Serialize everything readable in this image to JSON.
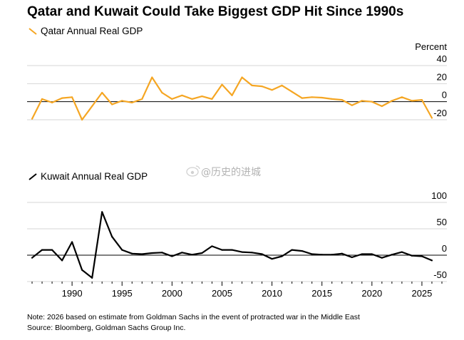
{
  "title": "Qatar and Kuwait Could Take Biggest GDP Hit Since 1990s",
  "note": "Note: 2026 based on estimate from Goldman Sachs in the event of protracted war in the Middle East",
  "source": "Source: Bloomberg, Goldman Sachs Group Inc.",
  "watermark": "@历史的进城",
  "colors": {
    "qatar": "#f5a623",
    "kuwait": "#000000",
    "grid": "#d6d6d6"
  },
  "chart_data": [
    {
      "type": "line",
      "title": "",
      "series": [
        {
          "name": "Qatar Annual Real GDP",
          "x": [
            1986,
            1987,
            1988,
            1989,
            1990,
            1991,
            1992,
            1993,
            1994,
            1995,
            1996,
            1997,
            1998,
            1999,
            2000,
            2001,
            2002,
            2003,
            2004,
            2005,
            2006,
            2007,
            2008,
            2009,
            2010,
            2011,
            2012,
            2013,
            2014,
            2015,
            2016,
            2017,
            2018,
            2019,
            2020,
            2021,
            2022,
            2023,
            2024,
            2025,
            2026
          ],
          "values": [
            -19,
            3,
            -1,
            4,
            5,
            -20,
            -5,
            10,
            -3,
            1,
            -1,
            3,
            27,
            10,
            3,
            7,
            3,
            6,
            3,
            19,
            7,
            27,
            18,
            17,
            13,
            18,
            11,
            4,
            5,
            4.5,
            3,
            2,
            -4,
            1,
            0,
            -5,
            1,
            5,
            1,
            2,
            -18
          ]
        }
      ],
      "xlim": [
        1985.5,
        2027.5
      ],
      "ylim": [
        -20,
        40
      ],
      "yticks": [
        -20,
        0,
        20,
        40
      ],
      "ylabel": "Percent",
      "grid": true,
      "legend": "top-left"
    },
    {
      "type": "line",
      "title": "",
      "series": [
        {
          "name": "Kuwait Annual Real GDP",
          "x": [
            1986,
            1987,
            1988,
            1989,
            1990,
            1991,
            1992,
            1993,
            1994,
            1995,
            1996,
            1997,
            1998,
            1999,
            2000,
            2001,
            2002,
            2003,
            2004,
            2005,
            2006,
            2007,
            2008,
            2009,
            2010,
            2011,
            2012,
            2013,
            2014,
            2015,
            2016,
            2017,
            2018,
            2019,
            2020,
            2021,
            2022,
            2023,
            2024,
            2025,
            2026
          ],
          "values": [
            -5,
            10,
            10,
            -10,
            25,
            -28,
            -43,
            82,
            35,
            10,
            3,
            2,
            4,
            5,
            -2,
            5,
            1,
            4,
            17,
            10,
            10,
            6,
            5,
            2,
            -7,
            -2,
            10,
            8,
            2,
            1,
            1,
            3,
            -4,
            2,
            2,
            -5,
            1,
            6,
            -1,
            -2,
            -10
          ]
        }
      ],
      "xlim": [
        1985.5,
        2027.5
      ],
      "ylim": [
        -50,
        100
      ],
      "yticks": [
        -50,
        0,
        50,
        100
      ],
      "xticks": [
        1990,
        1995,
        2000,
        2005,
        2010,
        2015,
        2020,
        2025
      ],
      "grid": true,
      "legend": "top-left"
    }
  ]
}
